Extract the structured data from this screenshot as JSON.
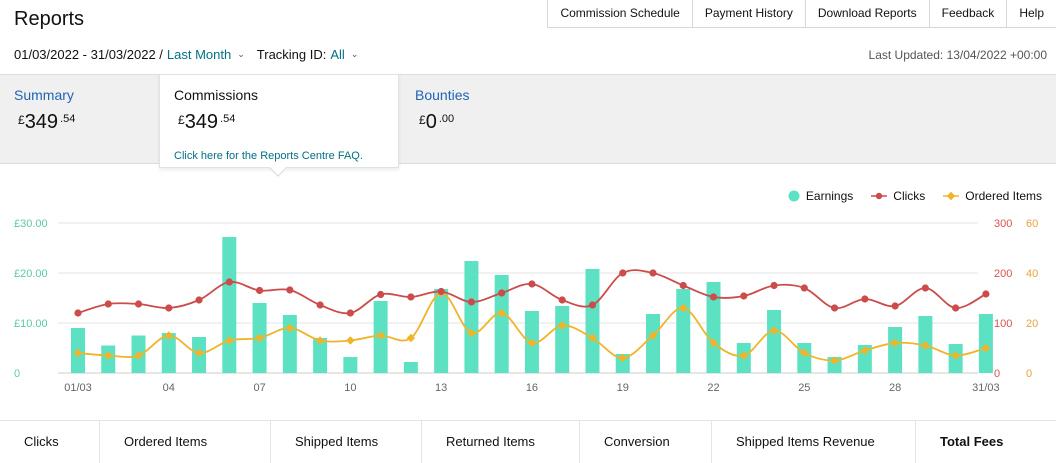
{
  "page": {
    "title": "Reports"
  },
  "topnav": {
    "items": [
      "Commission Schedule",
      "Payment History",
      "Download Reports",
      "Feedback",
      "Help"
    ]
  },
  "filters": {
    "date_range": "01/03/2022 - 31/03/2022 /",
    "period": "Last Month",
    "tracking_label": "Tracking ID:",
    "tracking_value": "All"
  },
  "last_updated": "Last Updated: 13/04/2022 +00:00",
  "summary": {
    "label": "Summary",
    "currency": "£",
    "whole": "349",
    "decimal": ".54"
  },
  "commissions": {
    "label": "Commissions",
    "currency": "£",
    "whole": "349",
    "decimal": ".54",
    "faq_link": "Click here for the Reports Centre FAQ."
  },
  "bounties": {
    "label": "Bounties",
    "currency": "£",
    "whole": "0",
    "decimal": ".00"
  },
  "legend": {
    "earnings": "Earnings",
    "clicks": "Clicks",
    "ordered": "Ordered Items"
  },
  "colors": {
    "earnings": "#5de1c3",
    "clicks": "#cc4b4b",
    "ordered": "#f0b429",
    "axis_left": "#5cc9a8",
    "axis_right_clicks": "#d9534f",
    "axis_right_ordered": "#e8a23b",
    "grid": "#e3e3e3",
    "link": "#007185",
    "blue_label": "#2164b4"
  },
  "metrics_tabs": [
    "Clicks",
    "Ordered Items",
    "Shipped Items",
    "Returned Items",
    "Conversion",
    "Shipped Items Revenue",
    "Total Fees"
  ],
  "chart_data": {
    "type": "bar",
    "title": "",
    "x": [
      1,
      2,
      3,
      4,
      5,
      6,
      7,
      8,
      9,
      10,
      11,
      12,
      13,
      14,
      15,
      16,
      17,
      18,
      19,
      20,
      21,
      22,
      23,
      24,
      25,
      26,
      27,
      28,
      29,
      30,
      31
    ],
    "x_tick_labels": [
      "01/03",
      "04",
      "07",
      "10",
      "13",
      "16",
      "19",
      "22",
      "25",
      "28",
      "31/03"
    ],
    "x_tick_days": [
      1,
      4,
      7,
      10,
      13,
      16,
      19,
      22,
      25,
      28,
      31
    ],
    "y_left": {
      "ticks": [
        "£30.00",
        "£20.00",
        "£10.00",
        "0"
      ],
      "range": [
        0,
        30
      ]
    },
    "y_right_clicks": {
      "ticks": [
        "300",
        "200",
        "100",
        "0"
      ],
      "range": [
        0,
        300
      ]
    },
    "y_right_ordered": {
      "ticks": [
        "60",
        "40",
        "20",
        "0"
      ],
      "range": [
        0,
        60
      ]
    },
    "grid": true,
    "legend_position": "top-right",
    "series": [
      {
        "name": "Earnings",
        "type": "bar",
        "axis": "left",
        "values": [
          9.0,
          5.5,
          7.5,
          8.0,
          7.2,
          27.2,
          14.0,
          11.6,
          7.0,
          3.2,
          14.4,
          2.2,
          16.8,
          22.4,
          19.6,
          12.4,
          13.4,
          20.8,
          3.8,
          11.8,
          16.8,
          18.2,
          6.0,
          12.6,
          6.0,
          3.2,
          5.6,
          9.2,
          11.4,
          5.8,
          11.8
        ]
      },
      {
        "name": "Clicks",
        "type": "line",
        "axis": "right_clicks",
        "values": [
          120,
          138,
          138,
          130,
          146,
          182,
          165,
          166,
          136,
          120,
          157,
          152,
          163,
          142,
          160,
          178,
          146,
          136,
          200,
          200,
          175,
          152,
          154,
          175,
          170,
          130,
          148,
          134,
          170,
          130,
          158
        ]
      },
      {
        "name": "Ordered Items",
        "type": "line",
        "axis": "right_ordered",
        "values": [
          8,
          7,
          7,
          15,
          8,
          13,
          14,
          18,
          13,
          13,
          15,
          14,
          32,
          16,
          24,
          12,
          19,
          14,
          6,
          15,
          26,
          12,
          7,
          17,
          8,
          5,
          9,
          12,
          11,
          7,
          10
        ]
      }
    ]
  }
}
